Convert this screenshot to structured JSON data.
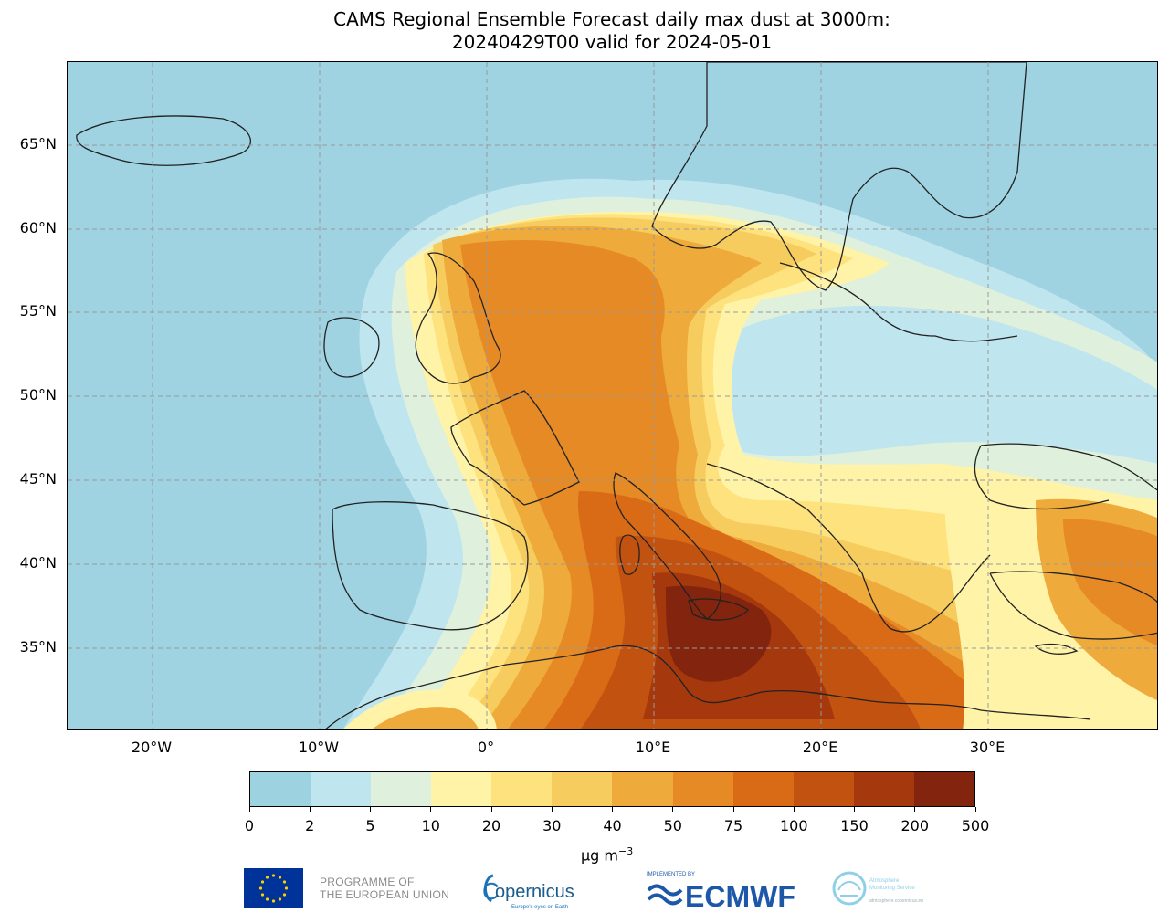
{
  "title": {
    "line1": "CAMS Regional Ensemble Forecast daily max dust at 3000m:",
    "line2": "20240429T00 valid for 2024-05-01"
  },
  "map": {
    "lat_labels": [
      "65°N",
      "60°N",
      "55°N",
      "50°N",
      "45°N",
      "40°N",
      "35°N"
    ],
    "lon_labels": [
      "20°W",
      "10°W",
      "0°",
      "10°E",
      "20°E",
      "30°E"
    ],
    "colors": {
      "sea": "#a0d3e2",
      "gridline": "#9a9a9a",
      "coastline": "#222222"
    }
  },
  "colorbar": {
    "ticks": [
      "0",
      "2",
      "5",
      "10",
      "20",
      "30",
      "40",
      "50",
      "75",
      "100",
      "150",
      "200",
      "500"
    ],
    "colors": [
      "#9dd2e0",
      "#bfe5ef",
      "#dff0dc",
      "#fff3a8",
      "#fde27e",
      "#f7cc5f",
      "#eeaa3b",
      "#e68a26",
      "#d96b16",
      "#c2520f",
      "#a5380c",
      "#83240f"
    ],
    "units": "µg m",
    "units_exp": "−3"
  },
  "footer": {
    "eu_line1": "PROGRAMME OF",
    "eu_line2": "THE EUROPEAN UNION",
    "copernicus": "opernicus",
    "copernicus_c": "C",
    "copernicus_sub": "Europe's eyes on Earth",
    "ecmwf_small": "IMPLEMENTED BY",
    "ecmwf": "ECMWF",
    "cams_line1": "Atmosphere",
    "cams_line2": "Monitoring Service",
    "cams_line3": "atmosphere.copernicus.eu"
  }
}
